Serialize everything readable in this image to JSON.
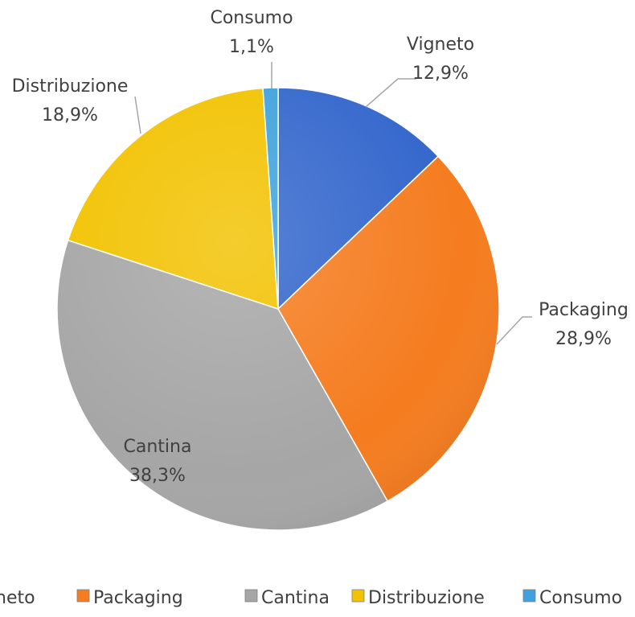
{
  "chart_data": {
    "type": "pie",
    "categories": [
      "Vigneto",
      "Packaging",
      "Cantina",
      "Distribuzione",
      "Consumo"
    ],
    "values": [
      12.9,
      28.9,
      38.3,
      18.9,
      1.1
    ],
    "value_labels": [
      "12,9%",
      "28,9%",
      "38,3%",
      "18,9%",
      "1,1%"
    ],
    "colors": [
      "#3366CC",
      "#F57C1F",
      "#A6A6A6",
      "#F2C200",
      "#3FA2DC"
    ],
    "legend": {
      "position": "bottom",
      "entries": [
        "Vigneto",
        "Packaging",
        "Cantina",
        "Distribuzione",
        "Consumo"
      ],
      "visible_text": [
        "neto",
        "Packaging",
        "Cantina",
        "Distribuzione",
        "Consumo"
      ]
    }
  }
}
